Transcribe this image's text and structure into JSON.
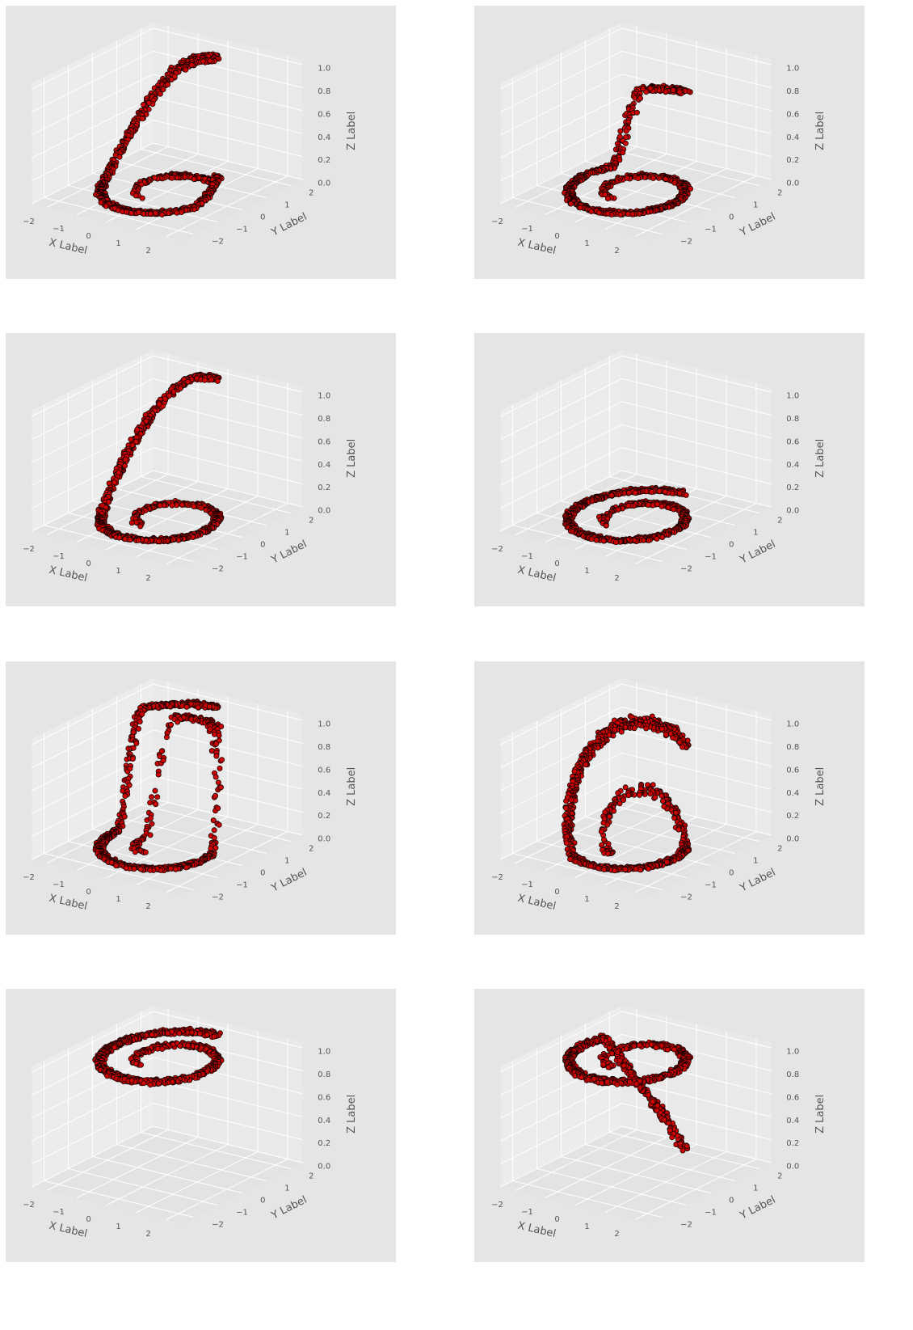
{
  "figure": {
    "background": "#ffffff",
    "panel_background": "#e5e5e5",
    "pane_colors": [
      "#e9e9e9",
      "#ececec",
      "#e3e3e3"
    ],
    "grid_color": "#ffffff",
    "marker_face": "#cc0000",
    "marker_edge": "#1a0000"
  },
  "chart_data": [
    {
      "type": "scatter3d",
      "panel": 1,
      "shape": "swiss-roll base with surface rising toward back-right",
      "xlabel": "X Label",
      "ylabel": "Y Label",
      "zlabel": "Z Label",
      "xticks": [
        "−2",
        "−1",
        "0",
        "1",
        "2"
      ],
      "yticks": [
        "−2",
        "−1",
        "0",
        "1",
        "2"
      ],
      "zticks": [
        "0.0",
        "0.2",
        "0.4",
        "0.6",
        "0.8",
        "1.0"
      ],
      "xlim": [
        -2.5,
        2.5
      ],
      "ylim": [
        -2.5,
        2.5
      ],
      "zlim": [
        0,
        1.05
      ],
      "lift": [
        0.65,
        0.7
      ],
      "points": 1000
    },
    {
      "type": "scatter3d",
      "panel": 2,
      "shape": "swiss-roll base with vertical arch at back",
      "xlabel": "X Label",
      "ylabel": "Y Label",
      "zlabel": "Z Label",
      "xticks": [
        "−2",
        "−1",
        "0",
        "1",
        "2"
      ],
      "yticks": [
        "−2",
        "−1",
        "0",
        "1",
        "2"
      ],
      "zticks": [
        "0.0",
        "0.2",
        "0.4",
        "0.6",
        "0.8",
        "1.0"
      ],
      "xlim": [
        -2.5,
        2.5
      ],
      "ylim": [
        -2.5,
        2.5
      ],
      "zlim": [
        0,
        1.05
      ],
      "lift": [
        0.65,
        0.7
      ],
      "points": 1000
    },
    {
      "type": "scatter3d",
      "panel": 3,
      "shape": "swiss-roll base with tail rising at right",
      "xlabel": "X Label",
      "ylabel": "Y Label",
      "zlabel": "Z Label",
      "xticks": [
        "−2",
        "−1",
        "0",
        "1",
        "2"
      ],
      "yticks": [
        "−2",
        "−1",
        "0",
        "1",
        "2"
      ],
      "zticks": [
        "0.0",
        "0.2",
        "0.4",
        "0.6",
        "0.8",
        "1.0"
      ],
      "xlim": [
        -2.5,
        2.5
      ],
      "ylim": [
        -2.5,
        2.5
      ],
      "zlim": [
        0,
        1.05
      ],
      "lift": [
        0.65,
        0.7
      ],
      "points": 1000
    },
    {
      "type": "scatter3d",
      "panel": 4,
      "shape": "swiss-roll base with tall arch",
      "xlabel": "X Label",
      "ylabel": "Y Label",
      "zlabel": "Z Label",
      "xticks": [
        "−2",
        "−1",
        "0",
        "1",
        "2"
      ],
      "yticks": [
        "−2",
        "−1",
        "0",
        "1",
        "2"
      ],
      "zticks": [
        "0.0",
        "0.2",
        "0.4",
        "0.6",
        "0.8",
        "1.0"
      ],
      "xlim": [
        -2.5,
        2.5
      ],
      "ylim": [
        -2.5,
        2.5
      ],
      "zlim": [
        0,
        1.05
      ],
      "lift": [
        0.65,
        0.7
      ],
      "points": 1000
    },
    {
      "type": "scatter3d",
      "panel": 5,
      "shape": "swiss-roll base and top layer joined at sides",
      "xlabel": "X Label",
      "ylabel": "Y Label",
      "zlabel": "Z Label",
      "xticks": [
        "−2",
        "−1",
        "0",
        "1",
        "2"
      ],
      "yticks": [
        "−2",
        "−1",
        "0",
        "1",
        "2"
      ],
      "zticks": [
        "0.0",
        "0.2",
        "0.4",
        "0.6",
        "0.8",
        "1.0"
      ],
      "xlim": [
        -2.5,
        2.5
      ],
      "ylim": [
        -2.5,
        2.5
      ],
      "zlim": [
        0,
        1.05
      ],
      "lift": [
        0.65,
        0.7
      ],
      "points": 1000
    },
    {
      "type": "scatter3d",
      "panel": 6,
      "shape": "swiss-roll twisted diagonally upward",
      "xlabel": "X Label",
      "ylabel": "Y Label",
      "zlabel": "Z Label",
      "xticks": [
        "−2",
        "−1",
        "0",
        "1",
        "2"
      ],
      "yticks": [
        "−2",
        "−1",
        "0",
        "1",
        "2"
      ],
      "zticks": [
        "0.0",
        "0.2",
        "0.4",
        "0.6",
        "0.8",
        "1.0"
      ],
      "xlim": [
        -2.5,
        2.5
      ],
      "ylim": [
        -2.5,
        2.5
      ],
      "zlim": [
        0,
        1.05
      ],
      "lift": [
        0.65,
        0.7
      ],
      "points": 1000
    },
    {
      "type": "scatter3d",
      "panel": 7,
      "shape": "swiss-roll mostly elevated, tail drops to floor at left",
      "xlabel": "X Label",
      "ylabel": "Y Label",
      "zlabel": "Z Label",
      "xticks": [
        "−2",
        "−1",
        "0",
        "1",
        "2"
      ],
      "yticks": [
        "−2",
        "−1",
        "0",
        "1",
        "2"
      ],
      "zticks": [
        "0.0",
        "0.2",
        "0.4",
        "0.6",
        "0.8",
        "1.0"
      ],
      "xlim": [
        -2.5,
        2.5
      ],
      "ylim": [
        -2.5,
        2.5
      ],
      "zlim": [
        0,
        1.05
      ],
      "lift": [
        0.65,
        0.7
      ],
      "points": 1000
    },
    {
      "type": "scatter3d",
      "panel": 8,
      "shape": "swiss-roll elevated at top, single tail descends to floor",
      "xlabel": "X Label",
      "ylabel": "Y Label",
      "zlabel": "Z Label",
      "xticks": [
        "−2",
        "−1",
        "0",
        "1",
        "2"
      ],
      "yticks": [
        "−2",
        "−1",
        "0",
        "1",
        "2"
      ],
      "zticks": [
        "0.0",
        "0.2",
        "0.4",
        "0.6",
        "0.8",
        "1.0"
      ],
      "xlim": [
        -2.5,
        2.5
      ],
      "ylim": [
        -2.5,
        2.5
      ],
      "zlim": [
        0,
        1.05
      ],
      "lift": [
        0.65,
        0.7
      ],
      "points": 1000
    }
  ]
}
